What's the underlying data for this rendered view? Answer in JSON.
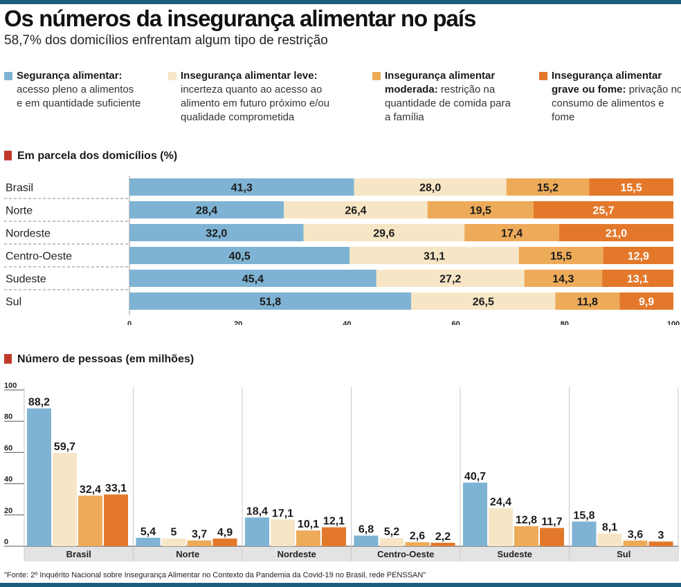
{
  "header": {
    "title": "Os números da insegurança alimentar no país",
    "subtitle": "58,7% dos domicílios enfrentam algum tipo de restrição"
  },
  "legend": [
    {
      "title": "Segurança alimentar:",
      "desc": "acesso pleno a alimentos e em quantidade suficiente",
      "color": "#7fb3d3"
    },
    {
      "title": "Insegurança alimentar leve:",
      "desc": "incerteza quanto ao acesso ao alimento em futuro próximo e/ou qualidade comprometida",
      "color": "#f7e6c6"
    },
    {
      "title": "Insegurança alimentar moderada:",
      "desc": "restrição na quantidade de comida para a família",
      "color": "#edab5a"
    },
    {
      "title": "Insegurança alimentar grave ou fome:",
      "desc": "privação no consumo de alimentos e fome",
      "color": "#e3782b"
    }
  ],
  "sections": {
    "households": "Em parcela dos domicílios (%)",
    "people": "Número de pessoas (em milhões)"
  },
  "source": "\"Fonte: 2º Inquérito Nacional sobre Insegurança Alimentar no Contexto da Pandemia da Covid-19 no Brasil, rede PENSSAN\"",
  "chart_data": [
    {
      "type": "bar",
      "orientation": "horizontal",
      "stacked": true,
      "title": "Em parcela dos domicílios (%)",
      "categories": [
        "Brasil",
        "Norte",
        "Nordeste",
        "Centro-Oeste",
        "Sudeste",
        "Sul"
      ],
      "xlim": [
        0,
        100
      ],
      "ticks": [
        0,
        20,
        40,
        60,
        80,
        100
      ],
      "series": [
        {
          "values": [
            41.3,
            28.4,
            32.0,
            40.5,
            45.4,
            51.8
          ],
          "labels": [
            "41,3",
            "28,4",
            "32,0",
            "40,5",
            "45,4",
            "51,8"
          ],
          "color": "#7fb3d3"
        },
        {
          "values": [
            28.0,
            26.4,
            29.6,
            31.1,
            27.2,
            26.5
          ],
          "labels": [
            "28,0",
            "26,4",
            "29,6",
            "31,1",
            "27,2",
            "26,5"
          ],
          "color": "#f7e6c6"
        },
        {
          "values": [
            15.2,
            19.5,
            17.4,
            15.5,
            14.3,
            11.8
          ],
          "labels": [
            "15,2",
            "19,5",
            "17,4",
            "15,5",
            "14,3",
            "11,8"
          ],
          "color": "#edab5a"
        },
        {
          "values": [
            15.5,
            25.7,
            21.0,
            12.9,
            13.1,
            9.9
          ],
          "labels": [
            "15,5",
            "25,7",
            "21,0",
            "12,9",
            "13,1",
            "9,9"
          ],
          "color": "#e3782b"
        }
      ]
    },
    {
      "type": "bar",
      "orientation": "vertical",
      "stacked": false,
      "title": "Número de pessoas (em milhões)",
      "categories": [
        "Brasil",
        "Norte",
        "Nordeste",
        "Centro-Oeste",
        "Sudeste",
        "Sul"
      ],
      "ylim": [
        0,
        100
      ],
      "ticks": [
        0,
        20,
        40,
        60,
        80,
        100
      ],
      "series": [
        {
          "values": [
            88.2,
            5.4,
            18.4,
            6.8,
            40.7,
            15.8
          ],
          "labels": [
            "88,2",
            "5,4",
            "18,4",
            "6,8",
            "40,7",
            "15,8"
          ],
          "color": "#7fb3d3"
        },
        {
          "values": [
            59.7,
            5,
            17.1,
            5.2,
            24.4,
            8.1
          ],
          "labels": [
            "59,7",
            "5",
            "17,1",
            "5,2",
            "24,4",
            "8,1"
          ],
          "color": "#f7e6c6"
        },
        {
          "values": [
            32.4,
            3.7,
            10.1,
            2.6,
            12.8,
            3.6
          ],
          "labels": [
            "32,4",
            "3,7",
            "10,1",
            "2,6",
            "12,8",
            "3,6"
          ],
          "color": "#edab5a"
        },
        {
          "values": [
            33.1,
            4.9,
            12.1,
            2.2,
            11.7,
            3
          ],
          "labels": [
            "33,1",
            "4,9",
            "12,1",
            "2,2",
            "11,7",
            "3"
          ],
          "color": "#e3782b"
        }
      ]
    }
  ]
}
